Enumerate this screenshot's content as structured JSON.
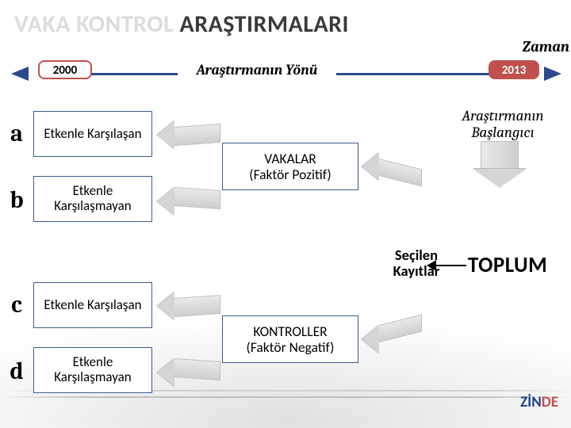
{
  "title": {
    "light": "VAKA KONTROL ",
    "dark": "ARAŞTIRMALARI"
  },
  "zaman": "Zaman",
  "timeline": {
    "left_year": "2000",
    "right_year": "2013",
    "label": "Araştırmanın Yönü",
    "bar_color": "#2b4a8b",
    "pill_border": "#c0504d"
  },
  "letters": {
    "a": "a",
    "b": "b",
    "c": "c",
    "d": "d"
  },
  "boxes": {
    "a": "Etkenle Karşılaşan",
    "b": "Etkenle Karşılaşmayan",
    "c": "Etkenle Karşılaşan",
    "d": "Etkenle Karşılaşmayan"
  },
  "mid": {
    "vakalar_l1": "VAKALAR",
    "vakalar_l2": "(Faktör Pozitif)",
    "kontroller_l1": "KONTROLLER",
    "kontroller_l2": "(Faktör Negatif)"
  },
  "secilen_l1": "Seçilen",
  "secilen_l2": "Kayıtlar",
  "ab_l1": "Araştırmanın",
  "ab_l2": "Başlangıcı",
  "toplum": "TOPLUM",
  "zinde": {
    "blue": "ZİN",
    "red": "DE"
  },
  "colors": {
    "box_border": "#385d8a",
    "arrow_grey": "#d5d5d5",
    "background": "#ffffff"
  }
}
